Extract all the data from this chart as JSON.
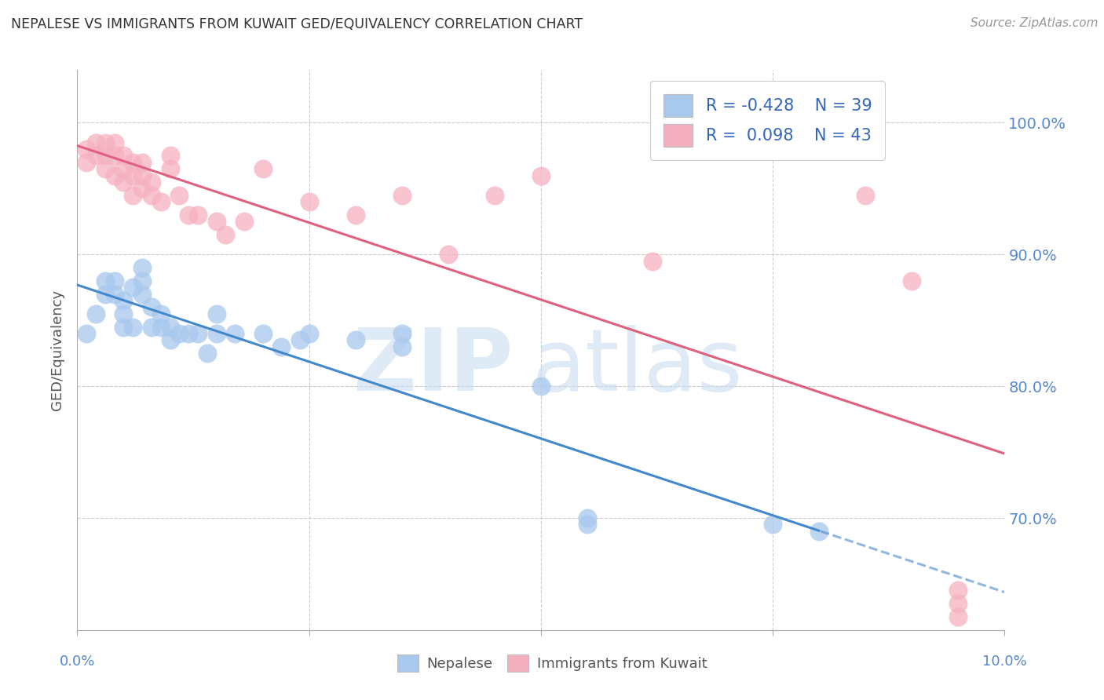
{
  "title": "NEPALESE VS IMMIGRANTS FROM KUWAIT GED/EQUIVALENCY CORRELATION CHART",
  "source": "Source: ZipAtlas.com",
  "ylabel": "GED/Equivalency",
  "ytick_labels": [
    "100.0%",
    "90.0%",
    "80.0%",
    "70.0%"
  ],
  "ytick_values": [
    1.0,
    0.9,
    0.8,
    0.7
  ],
  "xlim": [
    0.0,
    0.1
  ],
  "ylim": [
    0.615,
    1.04
  ],
  "blue_R": -0.428,
  "blue_N": 39,
  "pink_R": 0.098,
  "pink_N": 43,
  "blue_color": "#A8C8EE",
  "pink_color": "#F5B0C0",
  "blue_line_color": "#4488CC",
  "pink_line_color": "#E06080",
  "blue_scatter_x": [
    0.001,
    0.002,
    0.003,
    0.003,
    0.004,
    0.004,
    0.005,
    0.005,
    0.005,
    0.006,
    0.006,
    0.007,
    0.007,
    0.007,
    0.008,
    0.008,
    0.009,
    0.009,
    0.01,
    0.01,
    0.011,
    0.012,
    0.013,
    0.014,
    0.015,
    0.015,
    0.017,
    0.02,
    0.022,
    0.024,
    0.025,
    0.03,
    0.035,
    0.035,
    0.05,
    0.055,
    0.055,
    0.075,
    0.08
  ],
  "blue_scatter_y": [
    0.84,
    0.855,
    0.87,
    0.88,
    0.87,
    0.88,
    0.845,
    0.855,
    0.865,
    0.845,
    0.875,
    0.87,
    0.88,
    0.89,
    0.845,
    0.86,
    0.845,
    0.855,
    0.835,
    0.845,
    0.84,
    0.84,
    0.84,
    0.825,
    0.84,
    0.855,
    0.84,
    0.84,
    0.83,
    0.835,
    0.84,
    0.835,
    0.83,
    0.84,
    0.8,
    0.695,
    0.7,
    0.695,
    0.69
  ],
  "pink_scatter_x": [
    0.001,
    0.001,
    0.002,
    0.002,
    0.003,
    0.003,
    0.003,
    0.004,
    0.004,
    0.004,
    0.005,
    0.005,
    0.005,
    0.006,
    0.006,
    0.006,
    0.007,
    0.007,
    0.007,
    0.008,
    0.008,
    0.009,
    0.01,
    0.01,
    0.011,
    0.012,
    0.013,
    0.015,
    0.016,
    0.018,
    0.02,
    0.025,
    0.03,
    0.035,
    0.04,
    0.045,
    0.05,
    0.062,
    0.085,
    0.09,
    0.095,
    0.095,
    0.095
  ],
  "pink_scatter_y": [
    0.97,
    0.98,
    0.975,
    0.985,
    0.965,
    0.975,
    0.985,
    0.96,
    0.975,
    0.985,
    0.955,
    0.965,
    0.975,
    0.945,
    0.96,
    0.97,
    0.95,
    0.96,
    0.97,
    0.945,
    0.955,
    0.94,
    0.965,
    0.975,
    0.945,
    0.93,
    0.93,
    0.925,
    0.915,
    0.925,
    0.965,
    0.94,
    0.93,
    0.945,
    0.9,
    0.945,
    0.96,
    0.895,
    0.945,
    0.88,
    0.625,
    0.635,
    0.645
  ],
  "xtick_positions": [
    0.0,
    0.025,
    0.05,
    0.075,
    0.1
  ],
  "grid_xticks": [
    0.025,
    0.05,
    0.075
  ],
  "grid_color": "#CCCCCC",
  "spine_color": "#AAAAAA"
}
